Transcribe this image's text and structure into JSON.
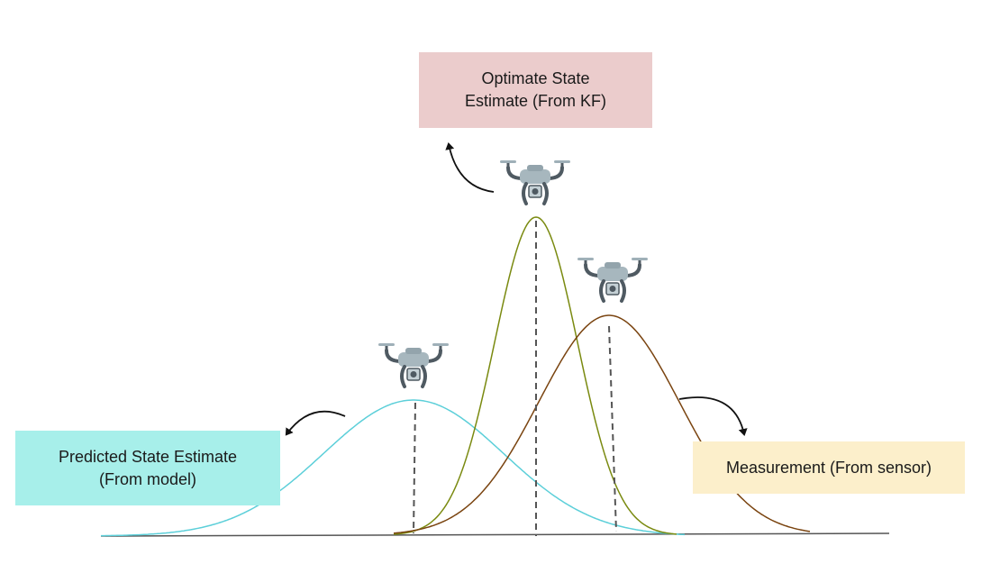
{
  "boxes": {
    "optimal": {
      "line1": "Optimate State",
      "line2": "Estimate (From KF)",
      "color": "#ebcccc"
    },
    "predicted": {
      "line1": "Predicted State Estimate",
      "line2": "(From model)",
      "color": "#a7efea"
    },
    "measurement": {
      "line1": "Measurement (From sensor)",
      "color": "#fcefcb"
    }
  },
  "curves": {
    "predicted": {
      "color": "#5ccfd9"
    },
    "optimal": {
      "color": "#7a8a10"
    },
    "measurement": {
      "color": "#7a4410"
    }
  },
  "axis_color": "#555555",
  "icons": [
    "drone-icon",
    "drone-icon",
    "drone-icon",
    "curved-arrow-icon",
    "curved-arrow-icon",
    "curved-arrow-icon"
  ]
}
